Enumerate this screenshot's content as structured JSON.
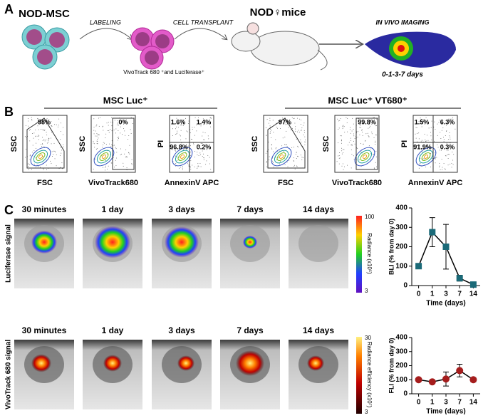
{
  "panel_a": {
    "label": "A",
    "source": "NOD-MSC",
    "step1": "LABELING",
    "step2": "CELL TRANSPLANT",
    "labeled_cells": "VivoTrack 680 ⁺and Luciferase⁺",
    "recipient": "NOD♀mice",
    "imaging": "IN VIVO IMAGING",
    "schedule": "0-1-3-7 days"
  },
  "panel_b": {
    "label": "B",
    "groups": [
      {
        "title": "MSC Luc⁺",
        "plots": [
          {
            "y_label": "SSC",
            "x_label": "FSC",
            "gates": [
              "98%"
            ]
          },
          {
            "y_label": "SSC",
            "x_label": "VivoTrack680",
            "gates": [
              "0%"
            ]
          },
          {
            "y_label": "PI",
            "x_label": "AnnexinV APC",
            "gates": [
              "1.6%",
              "1.4%",
              "96.8%",
              "0.2%"
            ]
          }
        ]
      },
      {
        "title": "MSC Luc⁺ VT680⁺",
        "plots": [
          {
            "y_label": "SSC",
            "x_label": "FSC",
            "gates": [
              "97%"
            ]
          },
          {
            "y_label": "SSC",
            "x_label": "VivoTrack680",
            "gates": [
              "99.8%"
            ]
          },
          {
            "y_label": "PI",
            "x_label": "AnnexinV APC",
            "gates": [
              "1.5%",
              "6.3%",
              "91.9%",
              "0.3%"
            ]
          }
        ]
      }
    ]
  },
  "panel_c": {
    "label": "C",
    "rows": [
      {
        "signal": "Luciferase signal",
        "times": [
          "30 minutes",
          "1 day",
          "3 days",
          "7 days",
          "14 days"
        ],
        "scale_max": "100",
        "scale_min": "3",
        "scale_label": "Radiance (x10⁵)"
      },
      {
        "signal": "VivoTrack 680 signal",
        "times": [
          "30 minutes",
          "1 day",
          "3 days",
          "7 days",
          "14 days"
        ],
        "scale_max": "30",
        "scale_min": "3",
        "scale_label": "Radiance efficiency (x10⁷)"
      }
    ]
  },
  "chart_data": [
    {
      "type": "line",
      "xlabel": "Time (days)",
      "ylabel": "BLI (% from day 0)",
      "categories": [
        "0",
        "1",
        "3",
        "7",
        "14"
      ],
      "values": [
        100,
        275,
        200,
        38,
        5
      ],
      "errors": [
        null,
        75,
        115,
        15,
        3
      ],
      "color": "#1b6a78",
      "marker": "square",
      "ylim": [
        0,
        400
      ],
      "yticks": [
        0,
        100,
        200,
        300,
        400
      ]
    },
    {
      "type": "line",
      "xlabel": "Time (days)",
      "ylabel": "FLI (% from day 0)",
      "categories": [
        "0",
        "1",
        "3",
        "7",
        "14"
      ],
      "values": [
        100,
        85,
        105,
        165,
        100
      ],
      "errors": [
        null,
        5,
        50,
        45,
        15
      ],
      "color": "#a51d1d",
      "marker": "circle",
      "ylim": [
        0,
        400
      ],
      "yticks": [
        0,
        100,
        200,
        300,
        400
      ]
    }
  ]
}
